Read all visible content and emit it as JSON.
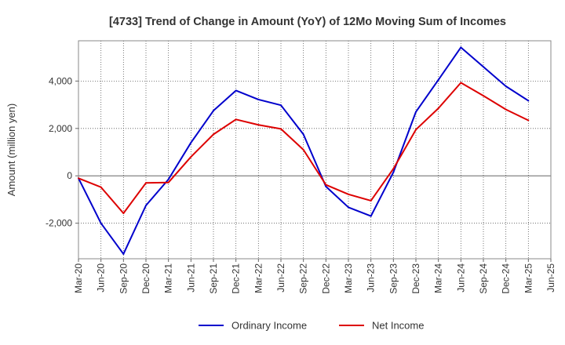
{
  "chart_data": {
    "type": "line",
    "title": "[4733]  Trend of Change in Amount (YoY) of 12Mo Moving Sum of Incomes",
    "ylabel": "Amount (million yen)",
    "xlabel": "",
    "ylim": [
      -3500,
      5700
    ],
    "y_ticks": [
      -2000,
      0,
      2000,
      4000
    ],
    "y_tick_labels": [
      "-2,000",
      "0",
      "2,000",
      "4,000"
    ],
    "grid": true,
    "legend_position": "bottom-center",
    "categories": [
      "Mar-20",
      "Jun-20",
      "Sep-20",
      "Dec-20",
      "Mar-21",
      "Jun-21",
      "Sep-21",
      "Dec-21",
      "Mar-22",
      "Jun-22",
      "Sep-22",
      "Dec-22",
      "Mar-23",
      "Jun-23",
      "Sep-23",
      "Dec-23",
      "Mar-24",
      "Jun-24",
      "Sep-24",
      "Dec-24",
      "Mar-25",
      "Jun-25"
    ],
    "series": [
      {
        "name": "Ordinary Income",
        "color": "#0000cc",
        "values": [
          -100,
          -2000,
          -3300,
          -1250,
          -150,
          1400,
          2750,
          3600,
          3220,
          2980,
          1750,
          -450,
          -1330,
          -1700,
          150,
          2700,
          4050,
          5420,
          4600,
          3780,
          3170,
          null
        ]
      },
      {
        "name": "Net Income",
        "color": "#dd0000",
        "values": [
          -100,
          -480,
          -1580,
          -300,
          -280,
          800,
          1750,
          2380,
          2150,
          1980,
          1100,
          -380,
          -780,
          -1050,
          300,
          1950,
          2850,
          3930,
          3380,
          2800,
          2340,
          null
        ]
      }
    ]
  }
}
